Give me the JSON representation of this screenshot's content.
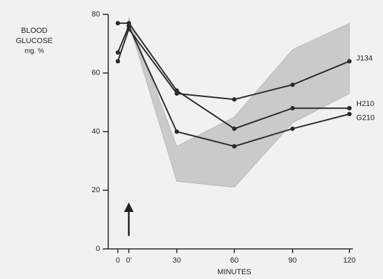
{
  "chart_data": {
    "type": "line",
    "y_label": [
      "BLOOD",
      "GLUCOSE",
      "mg. %"
    ],
    "x_label": "MINUTES",
    "categories": [
      "0",
      "0'",
      "30",
      "60",
      "90",
      "120"
    ],
    "ylim": [
      0,
      80
    ],
    "yticks": [
      0,
      20,
      40,
      60,
      80
    ],
    "color": "#2a2a2a",
    "band": {
      "color": "#c4c4c0",
      "upper": [
        null,
        79,
        35,
        45,
        68,
        77
      ],
      "lower": [
        null,
        77,
        23,
        21,
        43,
        53
      ]
    },
    "series": [
      {
        "name": "J134",
        "color": "#2a2a2a",
        "values": [
          64,
          75,
          53,
          51,
          56,
          64
        ]
      },
      {
        "name": "H210",
        "color": "#2a2a2a",
        "values": [
          77,
          77,
          54,
          41,
          48,
          48
        ]
      },
      {
        "name": "G210",
        "color": "#2a2a2a",
        "values": [
          67,
          76,
          40,
          35,
          41,
          46
        ]
      }
    ]
  }
}
